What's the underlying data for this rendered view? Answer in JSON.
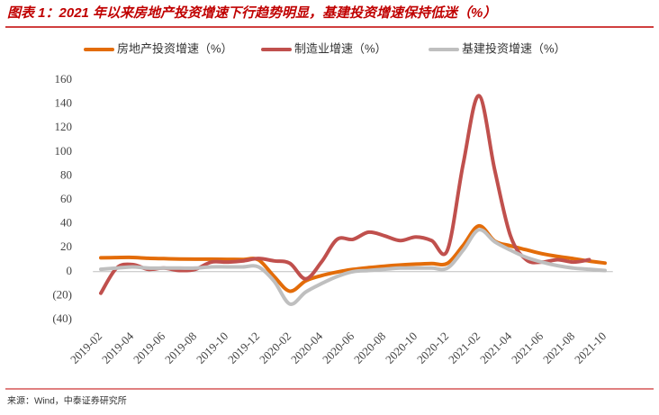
{
  "chart_data": {
    "type": "line",
    "title": "图表 1：2021 年以来房地产投资增速下行趋势明显，基建投资增速保持低迷（%）",
    "source": "来源：Wind，中泰证券研究所",
    "legend": "top",
    "categories": [
      "2019-02",
      null,
      "2019-04",
      null,
      "2019-06",
      null,
      "2019-08",
      null,
      "2019-10",
      null,
      "2019-12",
      null,
      "2020-02",
      null,
      "2020-04",
      null,
      "2020-06",
      null,
      "2020-08",
      null,
      "2020-10",
      null,
      "2020-12",
      null,
      "2021-02",
      null,
      "2021-04",
      null,
      "2021-06",
      null,
      "2021-08",
      null,
      "2021-10"
    ],
    "series": [
      {
        "name": "房地产投资增速（%）",
        "color": "#e36c09",
        "values": [
          11.6,
          11.8,
          11.9,
          11.2,
          10.9,
          10.6,
          10.5,
          10.5,
          10.3,
          10.2,
          9.9,
          -4,
          -16.3,
          -7.7,
          -3.3,
          -0.3,
          1.9,
          3.4,
          4.6,
          5.6,
          6.3,
          6.8,
          7.0,
          22,
          38.3,
          25.6,
          21.6,
          18.3,
          15.0,
          12.7,
          10.9,
          8.9,
          7.2
        ]
      },
      {
        "name": "制造业增速（%）",
        "color": "#c0504d",
        "values": [
          -18,
          3,
          6,
          2,
          3,
          1,
          2,
          8,
          8,
          9,
          11,
          9,
          7,
          -6,
          8,
          27,
          27,
          33,
          30,
          26,
          29,
          26,
          18,
          90,
          147,
          85,
          30,
          10,
          8,
          10,
          8,
          10,
          null
        ]
      },
      {
        "name": "基建投资增速（%）",
        "color": "#bfbfbf",
        "values": [
          2,
          3,
          4,
          3,
          3,
          3,
          3,
          4,
          4,
          4,
          4,
          -8,
          -27,
          -17,
          -10,
          -4,
          0,
          1,
          2,
          3,
          3,
          3,
          3,
          18,
          35,
          25,
          18,
          12,
          8,
          5,
          3,
          2,
          1
        ]
      }
    ],
    "ylim": [
      -40,
      160
    ],
    "yticks": [
      {
        "value": -40,
        "label": "(40)"
      },
      {
        "value": -20,
        "label": "(20)"
      },
      0,
      20,
      40,
      60,
      80,
      100,
      120,
      140,
      160
    ],
    "grid": false
  }
}
